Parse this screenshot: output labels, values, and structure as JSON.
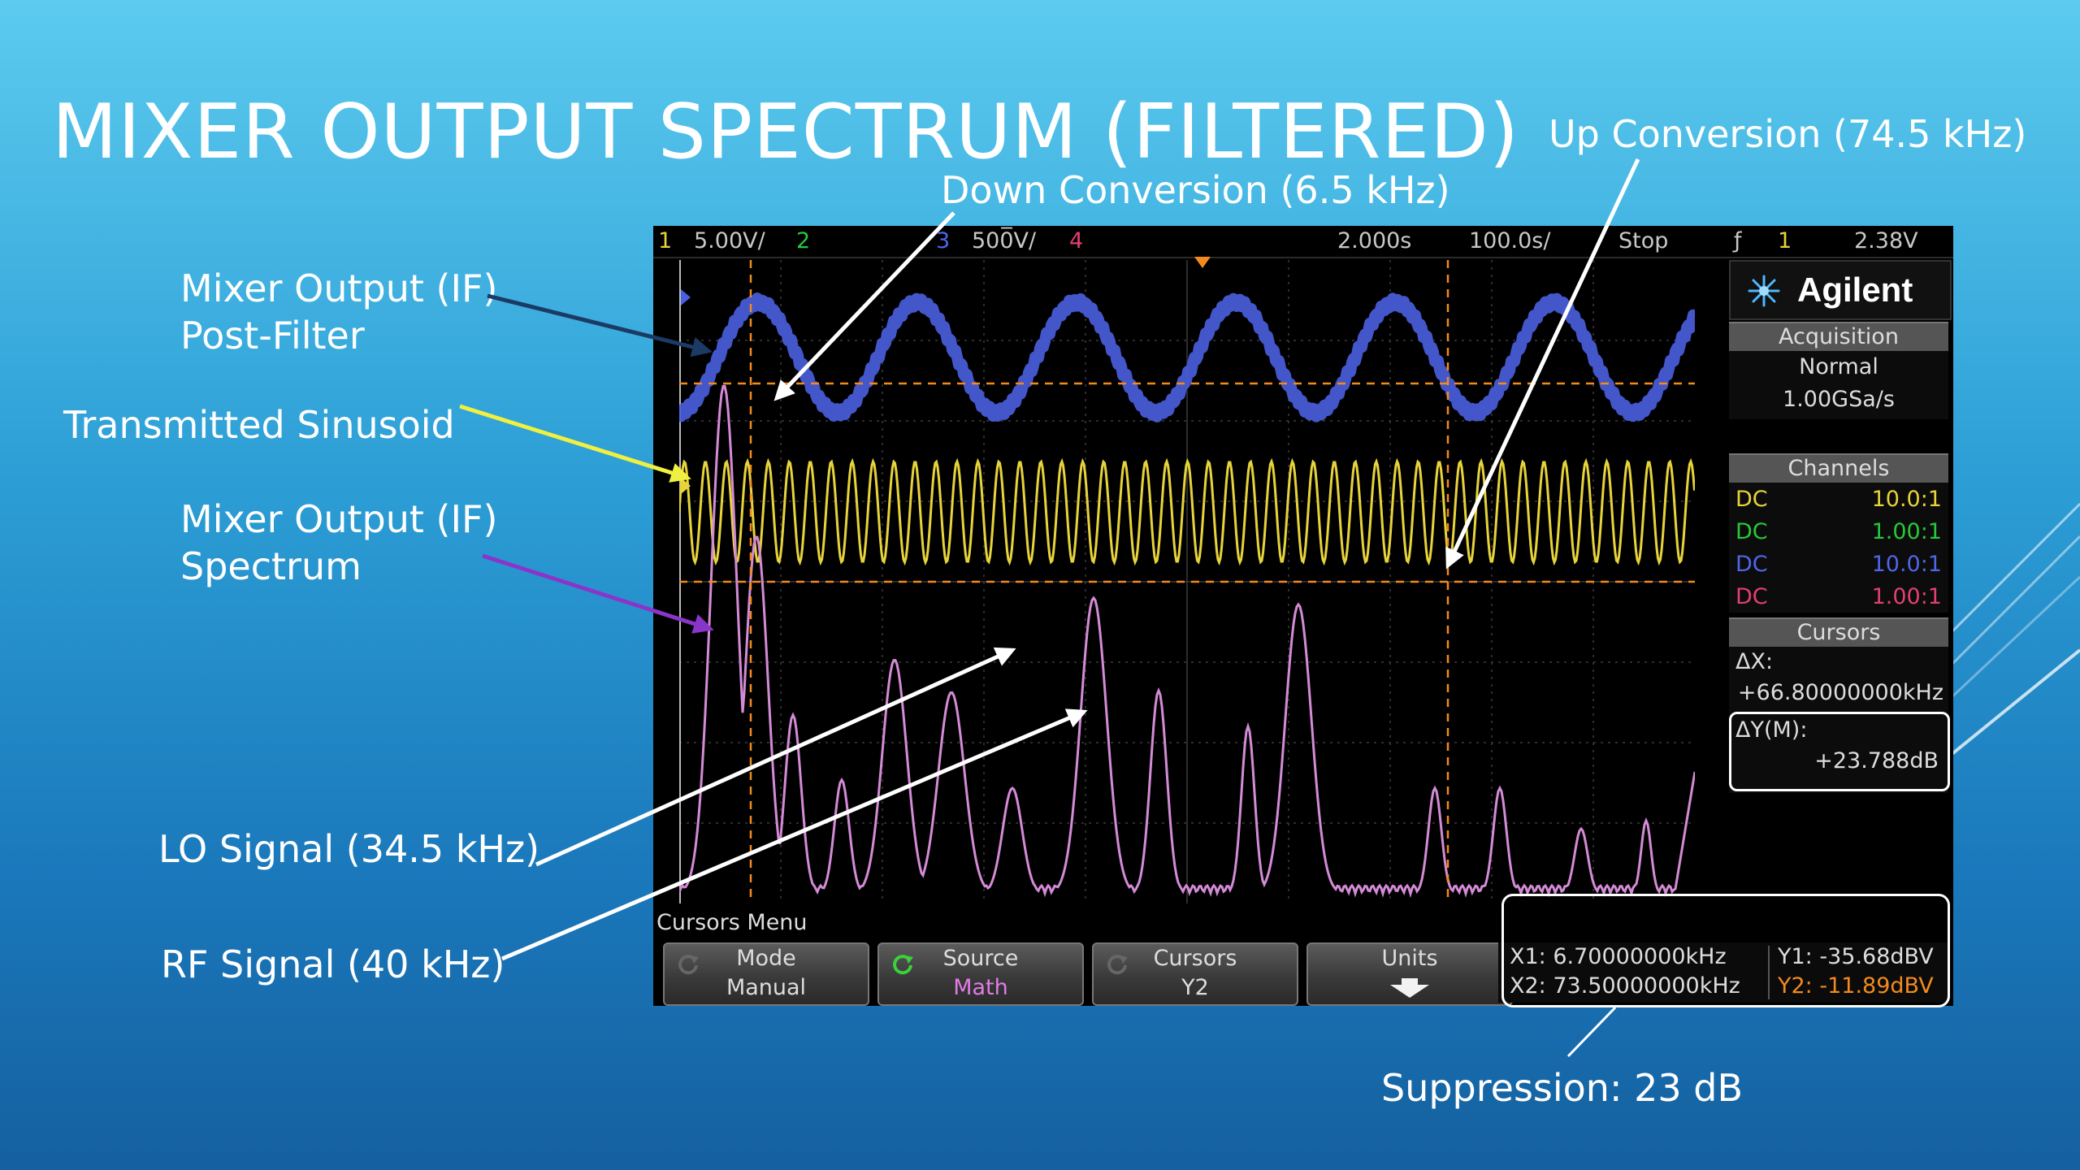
{
  "slide": {
    "title": "MIXER OUTPUT SPECTRUM (FILTERED)",
    "callouts": {
      "down_conversion": "Down Conversion (6.5 kHz)",
      "up_conversion": "Up Conversion (74.5 kHz)",
      "mixer_output_post_line1": "Mixer Output (IF)",
      "mixer_output_post_line2": "Post-Filter",
      "transmitted_sinusoid": "Transmitted Sinusoid",
      "mixer_output_spec_line1": "Mixer Output (IF)",
      "mixer_output_spec_line2": "Spectrum",
      "lo_signal": "LO Signal (34.5 kHz)",
      "rf_signal": "RF Signal (40 kHz)",
      "suppression": "Suppression: 23 dB"
    },
    "colors": {
      "arrow_white": "#ffffff",
      "arrow_navy": "#1b3a66",
      "arrow_yellow": "#f0f040",
      "arrow_purple": "#8a35c9"
    }
  },
  "oscilloscope": {
    "top_bar": {
      "ch1_num": "1",
      "ch1_scale": "5.00V/",
      "ch2_num": "2",
      "ch3_num": "3",
      "ch3_scale": "500̅V/",
      "ch4_num": "4",
      "time_delay": "2.000s",
      "time_scale": "100.0s/",
      "run_state": "Stop",
      "trigger_icon": "ƒ",
      "trigger_ch": "1",
      "trigger_level": "2.38V"
    },
    "brand": {
      "name": "Agilent",
      "logo_icon": "agilent-spark-icon"
    },
    "acquisition": {
      "header": "Acquisition",
      "mode": "Normal",
      "rate": "1.00GSa/s"
    },
    "channels": {
      "header": "Channels",
      "rows": [
        {
          "coupling": "DC",
          "probe": "10.0:1",
          "color": "#e7d33a"
        },
        {
          "coupling": "DC",
          "probe": "1.00:1",
          "color": "#28c83a"
        },
        {
          "coupling": "DC",
          "probe": "10.0:1",
          "color": "#4f66e8"
        },
        {
          "coupling": "DC",
          "probe": "1.00:1",
          "color": "#e24070"
        }
      ]
    },
    "cursors_panel": {
      "header": "Cursors",
      "dx_label": "ΔX:",
      "dx_value": "+66.80000000kHz",
      "dy_label": "ΔY(M):",
      "dy_value": "+23.788dB"
    },
    "menu": {
      "title": "Cursors Menu",
      "softkeys": [
        {
          "label": "Mode",
          "value": "Manual"
        },
        {
          "label": "Source",
          "value": "Math"
        },
        {
          "label": "Cursors",
          "value": "Y2"
        },
        {
          "label": "Units",
          "value": ""
        }
      ]
    },
    "readout": {
      "x1": "X1: 6.70000000kHz",
      "x2": "X2: 73.50000000kHz",
      "y1": "Y1: -35.68dBV",
      "y2": "Y2: -11.89dBV"
    },
    "trace_colors": {
      "ch1": "#e7d33a",
      "ch3": "#4a5fe0",
      "math": "#d48bd6",
      "cursor": "#f28a1e",
      "grid": "#3a3a3a"
    }
  }
}
